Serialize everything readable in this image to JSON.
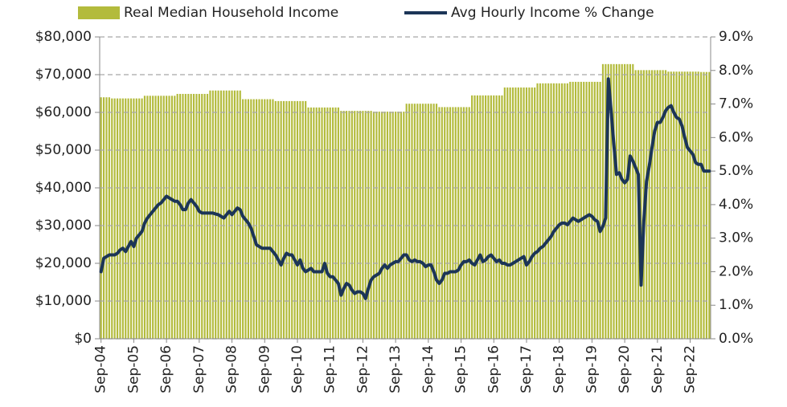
{
  "chart_data": {
    "type": "combo",
    "categories": [
      "Sep-04",
      null,
      null,
      null,
      null,
      null,
      null,
      null,
      null,
      null,
      null,
      null,
      "Sep-05",
      null,
      null,
      null,
      null,
      null,
      null,
      null,
      null,
      null,
      null,
      null,
      "Sep-06",
      null,
      null,
      null,
      null,
      null,
      null,
      null,
      null,
      null,
      null,
      null,
      "Sep-07",
      null,
      null,
      null,
      null,
      null,
      null,
      null,
      null,
      null,
      null,
      null,
      "Sep-08",
      null,
      null,
      null,
      null,
      null,
      null,
      null,
      null,
      null,
      null,
      null,
      "Sep-09",
      null,
      null,
      null,
      null,
      null,
      null,
      null,
      null,
      null,
      null,
      null,
      "Sep-10",
      null,
      null,
      null,
      null,
      null,
      null,
      null,
      null,
      null,
      null,
      null,
      "Sep-11",
      null,
      null,
      null,
      null,
      null,
      null,
      null,
      null,
      null,
      null,
      null,
      "Sep-12",
      null,
      null,
      null,
      null,
      null,
      null,
      null,
      null,
      null,
      null,
      null,
      "Sep-13",
      null,
      null,
      null,
      null,
      null,
      null,
      null,
      null,
      null,
      null,
      null,
      "Sep-14",
      null,
      null,
      null,
      null,
      null,
      null,
      null,
      null,
      null,
      null,
      null,
      "Sep-15",
      null,
      null,
      null,
      null,
      null,
      null,
      null,
      null,
      null,
      null,
      null,
      "Sep-16",
      null,
      null,
      null,
      null,
      null,
      null,
      null,
      null,
      null,
      null,
      null,
      "Sep-17",
      null,
      null,
      null,
      null,
      null,
      null,
      null,
      null,
      null,
      null,
      null,
      "Sep-18",
      null,
      null,
      null,
      null,
      null,
      null,
      null,
      null,
      null,
      null,
      null,
      "Sep-19",
      null,
      null,
      null,
      null,
      null,
      null,
      null,
      null,
      null,
      null,
      null,
      "Sep-20",
      null,
      null,
      null,
      null,
      null,
      null,
      null,
      null,
      null,
      null,
      null,
      "Sep-21",
      null,
      null,
      null,
      null,
      null,
      null,
      null,
      null,
      null,
      null,
      null,
      "Sep-22",
      null,
      null,
      null,
      null,
      null,
      null,
      null
    ],
    "series": [
      {
        "name": "Real Median Household Income",
        "type": "bar",
        "color": "#b3bb3c",
        "axis": "y",
        "values": [
          64000,
          64000,
          64000,
          64000,
          63700,
          63700,
          63700,
          63700,
          63700,
          63700,
          63700,
          63700,
          63700,
          63700,
          63700,
          63700,
          64400,
          64400,
          64400,
          64400,
          64400,
          64400,
          64400,
          64400,
          64400,
          64400,
          64400,
          64400,
          64900,
          64900,
          64900,
          64900,
          64900,
          64900,
          64900,
          64900,
          64900,
          64900,
          64900,
          64900,
          65800,
          65800,
          65800,
          65800,
          65800,
          65800,
          65800,
          65800,
          65800,
          65800,
          65800,
          65800,
          63500,
          63500,
          63500,
          63500,
          63500,
          63500,
          63500,
          63500,
          63500,
          63500,
          63500,
          63500,
          63000,
          63000,
          63000,
          63000,
          63000,
          63000,
          63000,
          63000,
          63000,
          63000,
          63000,
          63000,
          61300,
          61300,
          61300,
          61300,
          61300,
          61300,
          61300,
          61300,
          61300,
          61300,
          61300,
          61300,
          60400,
          60400,
          60400,
          60400,
          60400,
          60400,
          60400,
          60400,
          60400,
          60400,
          60400,
          60400,
          60200,
          60200,
          60200,
          60200,
          60200,
          60200,
          60200,
          60200,
          60200,
          60200,
          60200,
          60200,
          62300,
          62300,
          62300,
          62300,
          62300,
          62300,
          62300,
          62300,
          62300,
          62300,
          62300,
          62300,
          61400,
          61400,
          61400,
          61400,
          61400,
          61400,
          61400,
          61400,
          61400,
          61400,
          61400,
          61400,
          64500,
          64500,
          64500,
          64500,
          64500,
          64500,
          64500,
          64500,
          64500,
          64500,
          64500,
          64500,
          66600,
          66600,
          66600,
          66600,
          66600,
          66600,
          66600,
          66600,
          66600,
          66600,
          66600,
          66600,
          67700,
          67700,
          67700,
          67700,
          67700,
          67700,
          67700,
          67700,
          67700,
          67700,
          67700,
          67700,
          68100,
          68100,
          68100,
          68100,
          68100,
          68100,
          68100,
          68100,
          68100,
          68100,
          68100,
          68100,
          72800,
          72800,
          72800,
          72800,
          72800,
          72800,
          72800,
          72800,
          72800,
          72800,
          72800,
          72800,
          71200,
          71200,
          71200,
          71200,
          71200,
          71200,
          71200,
          71200,
          71200,
          71200,
          71200,
          71200,
          70800,
          70800,
          70800,
          70800,
          70800,
          70800,
          70800,
          70800,
          70800,
          70800,
          70800,
          70800,
          70700,
          70700,
          70700,
          70700
        ]
      },
      {
        "name": "Avg Hourly Income % Change",
        "type": "line",
        "color": "#1c3557",
        "axis": "y2",
        "values": [
          2.0,
          2.4,
          2.45,
          2.5,
          2.5,
          2.5,
          2.55,
          2.65,
          2.7,
          2.6,
          2.75,
          2.9,
          2.75,
          3.0,
          3.1,
          3.2,
          3.45,
          3.6,
          3.7,
          3.8,
          3.9,
          4.0,
          4.05,
          4.15,
          4.25,
          4.2,
          4.15,
          4.1,
          4.1,
          4.0,
          3.85,
          3.85,
          4.05,
          4.15,
          4.05,
          3.95,
          3.8,
          3.75,
          3.75,
          3.75,
          3.75,
          3.75,
          3.72,
          3.7,
          3.65,
          3.6,
          3.7,
          3.8,
          3.7,
          3.8,
          3.9,
          3.85,
          3.65,
          3.55,
          3.45,
          3.3,
          3.05,
          2.8,
          2.75,
          2.7,
          2.7,
          2.7,
          2.7,
          2.6,
          2.5,
          2.35,
          2.2,
          2.4,
          2.55,
          2.5,
          2.5,
          2.35,
          2.2,
          2.35,
          2.1,
          2.0,
          2.05,
          2.1,
          2.0,
          2.0,
          2.0,
          2.0,
          2.25,
          1.95,
          1.85,
          1.85,
          1.75,
          1.65,
          1.3,
          1.5,
          1.65,
          1.6,
          1.45,
          1.35,
          1.4,
          1.4,
          1.35,
          1.2,
          1.5,
          1.75,
          1.85,
          1.9,
          1.95,
          2.1,
          2.2,
          2.1,
          2.2,
          2.25,
          2.3,
          2.3,
          2.4,
          2.5,
          2.5,
          2.35,
          2.3,
          2.35,
          2.3,
          2.3,
          2.25,
          2.15,
          2.2,
          2.2,
          2.0,
          1.75,
          1.65,
          1.75,
          1.95,
          1.95,
          2.0,
          2.0,
          2.0,
          2.05,
          2.2,
          2.3,
          2.3,
          2.35,
          2.25,
          2.2,
          2.35,
          2.5,
          2.3,
          2.35,
          2.45,
          2.5,
          2.4,
          2.3,
          2.35,
          2.25,
          2.25,
          2.2,
          2.2,
          2.25,
          2.3,
          2.35,
          2.4,
          2.45,
          2.2,
          2.3,
          2.45,
          2.55,
          2.6,
          2.7,
          2.75,
          2.85,
          2.95,
          3.05,
          3.2,
          3.3,
          3.4,
          3.45,
          3.45,
          3.4,
          3.5,
          3.6,
          3.55,
          3.5,
          3.55,
          3.6,
          3.65,
          3.7,
          3.65,
          3.55,
          3.5,
          3.2,
          3.35,
          3.6,
          7.75,
          6.8,
          5.8,
          4.9,
          4.95,
          4.75,
          4.65,
          4.75,
          5.45,
          5.3,
          5.1,
          4.9,
          1.6,
          3.5,
          4.7,
          5.15,
          5.7,
          6.2,
          6.45,
          6.45,
          6.6,
          6.8,
          6.9,
          6.95,
          6.75,
          6.6,
          6.55,
          6.35,
          6.0,
          5.7,
          5.6,
          5.5,
          5.25,
          5.2,
          5.2,
          5.0,
          5.0,
          5.0
        ]
      }
    ],
    "ylim": [
      0,
      80000
    ],
    "yticks": [
      {
        "value": 0,
        "label": "$0"
      },
      {
        "value": 10000,
        "label": "$10,000"
      },
      {
        "value": 20000,
        "label": "$20,000"
      },
      {
        "value": 30000,
        "label": "$30,000"
      },
      {
        "value": 40000,
        "label": "$40,000"
      },
      {
        "value": 50000,
        "label": "$50,000"
      },
      {
        "value": 60000,
        "label": "$60,000"
      },
      {
        "value": 70000,
        "label": "$70,000"
      },
      {
        "value": 80000,
        "label": "$80,000"
      }
    ],
    "y2lim": [
      0,
      9
    ],
    "y2ticks": [
      {
        "value": 0,
        "label": "0.0%"
      },
      {
        "value": 1,
        "label": "1.0%"
      },
      {
        "value": 2,
        "label": "2.0%"
      },
      {
        "value": 3,
        "label": "3.0%"
      },
      {
        "value": 4,
        "label": "4.0%"
      },
      {
        "value": 5,
        "label": "5.0%"
      },
      {
        "value": 6,
        "label": "6.0%"
      },
      {
        "value": 7,
        "label": "7.0%"
      },
      {
        "value": 8,
        "label": "8.0%"
      },
      {
        "value": 9,
        "label": "9.0%"
      }
    ],
    "grid": true,
    "legend": "top"
  }
}
